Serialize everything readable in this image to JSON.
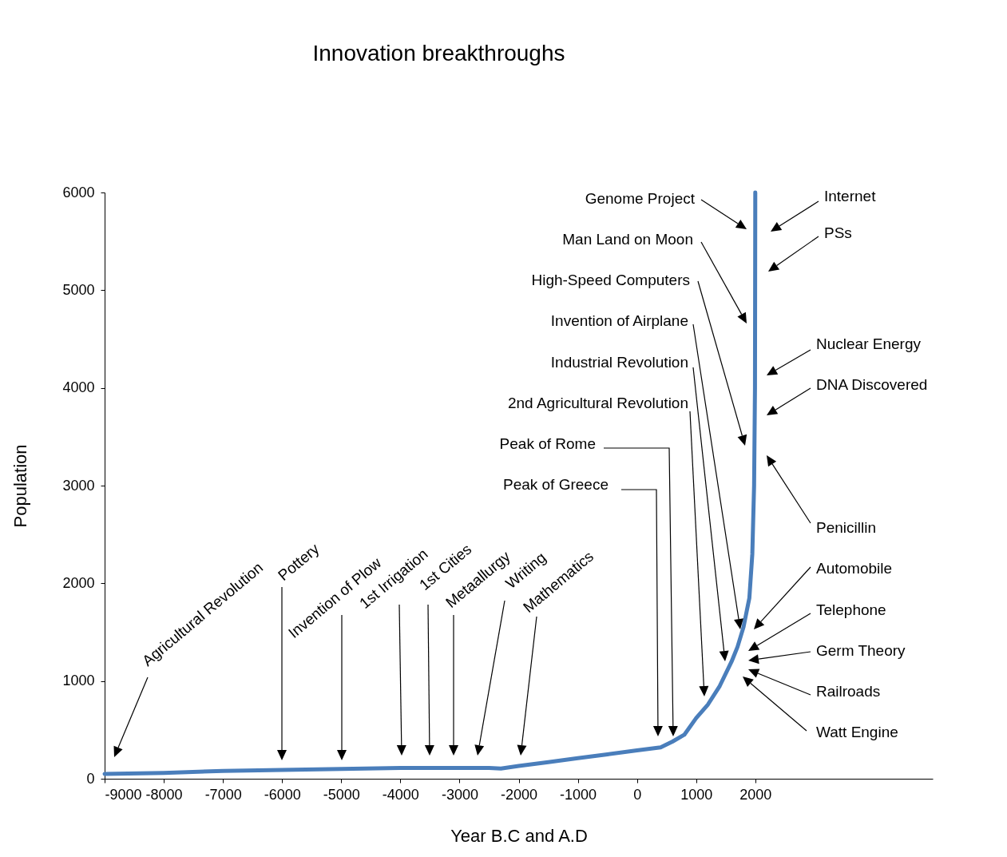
{
  "chart_data": {
    "type": "line",
    "title": "Innovation breakthroughs",
    "xlabel": "Year B.C and A.D",
    "ylabel": "Population",
    "x": [
      -9000,
      -8000,
      -7000,
      -6000,
      -5000,
      -4000,
      -3000,
      -2500,
      -2300,
      -2000,
      -1500,
      -1000,
      -500,
      0,
      400,
      600,
      800,
      1000,
      1200,
      1400,
      1600,
      1700,
      1800,
      1900,
      1950,
      1980,
      1995,
      2000
    ],
    "series": [
      {
        "color": "#4a7ebb",
        "values": [
          50,
          60,
          80,
          90,
          100,
          110,
          110,
          110,
          105,
          130,
          170,
          210,
          250,
          290,
          320,
          380,
          450,
          620,
          760,
          950,
          1200,
          1350,
          1550,
          1850,
          2300,
          3000,
          4000,
          6000
        ]
      }
    ],
    "xlim": [
      -9000,
      5000
    ],
    "ylim": [
      0,
      6000
    ],
    "xticks": [
      -9000,
      -8000,
      -7000,
      -6000,
      -5000,
      -4000,
      -3000,
      -2000,
      -1000,
      0,
      1000,
      2000
    ],
    "yticks": [
      0,
      1000,
      2000,
      3000,
      4000,
      5000,
      6000
    ],
    "grid": false,
    "legend": false,
    "marker": "none",
    "line_style": "solid",
    "annotations": [
      "Agricultural  Revolution",
      "Pottery",
      "Invention of Plow",
      "1st Irrigation",
      "1st Cities",
      "Metaallurgy",
      "Writing",
      "Mathematics",
      "Genome  Project",
      "Man Land on Moon",
      "High-Speed  Computers",
      "Invention  of Airplane",
      "Industrial  Revolution",
      "2nd Agricultural Revolution",
      "Peak of Rome",
      "Peak of Greece",
      "Internet",
      "PSs",
      "Nuclear Energy",
      "DNA Discovered",
      "Penicillin",
      "Automobile",
      "Telephone",
      "Germ Theory",
      "Railroads",
      "Watt Engine"
    ]
  }
}
